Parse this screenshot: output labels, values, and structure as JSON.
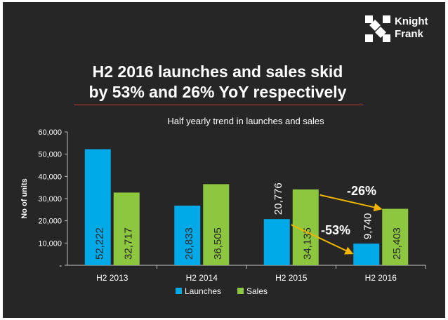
{
  "logo": {
    "line1": "Knight",
    "line2": "Frank"
  },
  "headline": {
    "line1": "H2 2016 launches and sales skid",
    "line2": "by 53% and 26% YoY respectively"
  },
  "colors": {
    "background": "#262626",
    "launches": "#00a9e8",
    "sales": "#8dc63f",
    "arrow": "#f2b500",
    "rule": "#c0392b"
  },
  "chart_data": {
    "type": "bar",
    "title": "Half yearly trend in launches and sales",
    "xlabel": "",
    "ylabel": "No of units",
    "categories": [
      "H2 2013",
      "H2 2014",
      "H2 2015",
      "H2 2016"
    ],
    "series": [
      {
        "name": "Launches",
        "values": [
          52222,
          26833,
          20776,
          9740
        ],
        "labels": [
          "52,222",
          "26,833",
          "20,776",
          "9,740"
        ]
      },
      {
        "name": "Sales",
        "values": [
          32717,
          36505,
          34135,
          25403
        ],
        "labels": [
          "32,717",
          "36,505",
          "34,135",
          "25,403"
        ]
      }
    ],
    "ylim": [
      0,
      60000
    ],
    "yticks": [
      0,
      10000,
      20000,
      30000,
      40000,
      50000,
      60000
    ],
    "ytick_labels": [
      "-",
      "10,000",
      "20,000",
      "30,000",
      "40,000",
      "50,000",
      "60,000"
    ],
    "grid": false,
    "legend": "bottom",
    "annotations": [
      {
        "text": "-26%",
        "series": "Sales",
        "from": "H2 2015",
        "to": "H2 2016"
      },
      {
        "text": "-53%",
        "series": "Launches",
        "from": "H2 2015",
        "to": "H2 2016"
      }
    ]
  }
}
